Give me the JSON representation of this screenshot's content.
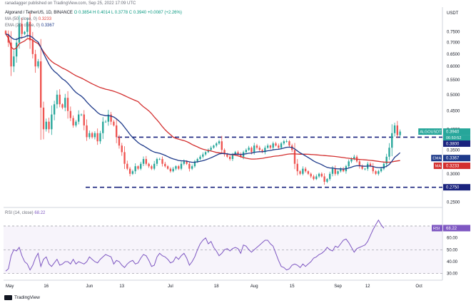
{
  "header": {
    "publisher_line": "ranadagger published on TradingView.com, Sep 25, 2022 17:09 UTC",
    "symbol_line": "Algorand / TetherUS, 1D, BINANCE",
    "ohlc": "O 0.3854  H 0.4014  L 0.3778  C 0.3940  +0.0087 (+2.26%)",
    "ma_label": "MA (50, close, 0)",
    "ma_value": "0.3233",
    "ema_label": "EMA (20, close, 0)",
    "ema_value": "0.3367",
    "rsi_label": "RSI (14, close)",
    "rsi_value": "68.22",
    "currency": "USDT"
  },
  "footer": {
    "brand": "TradingView"
  },
  "colors": {
    "candle_up": "#26a69a",
    "candle_down": "#ef5350",
    "ema": "#1e3a8a",
    "ma": "#d32f2f",
    "rsi": "#7e57c2",
    "dashed": "#1a237e",
    "price_badge": "#26a69a"
  },
  "chart_data": [
    {
      "type": "candlestick",
      "title": "Algorand / TetherUS, 1D, BINANCE",
      "x_tick_labels": [
        "May",
        "16",
        "Jun",
        "13",
        "Jul",
        "18",
        "Aug",
        "15",
        "Sep",
        "12",
        "Oct"
      ],
      "x_tick_days": [
        0,
        15,
        31,
        43,
        61,
        78,
        92,
        106,
        123,
        134,
        153
      ],
      "y_axis": {
        "scale": "log",
        "ylim": [
          0.2425,
          0.88
        ],
        "tick_labels": [
          "0.7500",
          "0.7000",
          "0.6500",
          "0.6000",
          "0.5500",
          "0.5000",
          "0.4500",
          "0.4000",
          "0.3500",
          "0.3000",
          "0.2500"
        ],
        "tick_values": [
          0.75,
          0.7,
          0.65,
          0.6,
          0.55,
          0.5,
          0.45,
          0.4,
          0.35,
          0.3,
          0.25
        ],
        "range_label_values": [
          0.275,
          0.38
        ]
      },
      "close": [
        0.74,
        0.7,
        0.6,
        0.64,
        0.7,
        0.79,
        0.74,
        0.75,
        0.8,
        0.71,
        0.65,
        0.6,
        0.62,
        0.46,
        0.4,
        0.42,
        0.4,
        0.44,
        0.47,
        0.5,
        0.47,
        0.46,
        0.49,
        0.45,
        0.43,
        0.41,
        0.42,
        0.44,
        0.44,
        0.41,
        0.38,
        0.39,
        0.38,
        0.39,
        0.37,
        0.39,
        0.42,
        0.42,
        0.44,
        0.42,
        0.41,
        0.38,
        0.36,
        0.345,
        0.32,
        0.31,
        0.3,
        0.305,
        0.315,
        0.31,
        0.32,
        0.33,
        0.32,
        0.315,
        0.31,
        0.32,
        0.33,
        0.33,
        0.32,
        0.315,
        0.31,
        0.305,
        0.31,
        0.315,
        0.31,
        0.32,
        0.325,
        0.32,
        0.31,
        0.315,
        0.325,
        0.33,
        0.335,
        0.34,
        0.345,
        0.35,
        0.355,
        0.36,
        0.365,
        0.37,
        0.35,
        0.34,
        0.335,
        0.33,
        0.34,
        0.345,
        0.34,
        0.335,
        0.345,
        0.35,
        0.355,
        0.345,
        0.36,
        0.355,
        0.35,
        0.345,
        0.355,
        0.36,
        0.355,
        0.365,
        0.36,
        0.355,
        0.365,
        0.37,
        0.37,
        0.36,
        0.35,
        0.32,
        0.305,
        0.3,
        0.31,
        0.305,
        0.3,
        0.295,
        0.29,
        0.295,
        0.3,
        0.295,
        0.285,
        0.29,
        0.3,
        0.31,
        0.3,
        0.305,
        0.31,
        0.305,
        0.315,
        0.325,
        0.33,
        0.335,
        0.325,
        0.315,
        0.31,
        0.31,
        0.32,
        0.315,
        0.305,
        0.3,
        0.305,
        0.31,
        0.32,
        0.335,
        0.355,
        0.39,
        0.41,
        0.385,
        0.394
      ],
      "series": [
        {
          "name": "EMA (20, close, 0)",
          "last": 0.3367
        },
        {
          "name": "MA (50, close, 0)",
          "last": 0.3233
        }
      ],
      "horizontal_levels": [
        0.38,
        0.275
      ],
      "last_price": 0.394,
      "countdown": "06:50:52",
      "price_labels": [
        {
          "text": "ALGOUSDT",
          "value": "0.3940"
        },
        {
          "text": "",
          "value": "0.3800"
        },
        {
          "text": "EMA",
          "value": "0.3367"
        },
        {
          "text": "MA",
          "value": "0.3233"
        },
        {
          "text": "",
          "value": "0.2750"
        }
      ]
    },
    {
      "type": "line",
      "title": "RSI (14, close)",
      "series": [
        {
          "name": "RSI (14, close)",
          "values": [
            32,
            34,
            45,
            50,
            49,
            52,
            45,
            40,
            38,
            33,
            37,
            43,
            47,
            36,
            42,
            44,
            38,
            36,
            39,
            42,
            37,
            38,
            40,
            40,
            38,
            42,
            38,
            40,
            39,
            38,
            40,
            44,
            42,
            40,
            39,
            42,
            44,
            46,
            45,
            44,
            38,
            41,
            40,
            37,
            35,
            38,
            40,
            41,
            38,
            39,
            43,
            46,
            45,
            41,
            36,
            37,
            44,
            47,
            45,
            44,
            42,
            39,
            40,
            44,
            42,
            45,
            47,
            43,
            37,
            40,
            44,
            50,
            55,
            58,
            60,
            55,
            57,
            52,
            49,
            45,
            47,
            50,
            51,
            49,
            51,
            52,
            51,
            47,
            54,
            53,
            50,
            48,
            50,
            52,
            54,
            56,
            58,
            58,
            55,
            53,
            47,
            41,
            36,
            35,
            33,
            34,
            37,
            38,
            37,
            35,
            38,
            36,
            38,
            40,
            43,
            44,
            46,
            47,
            49,
            52,
            50,
            49,
            53,
            52,
            55,
            58,
            59,
            56,
            52,
            48,
            51,
            52,
            53,
            54,
            57,
            62,
            67,
            71,
            75,
            71,
            68.22
          ]
        }
      ],
      "y_axis": {
        "ylim": [
          25,
          85
        ],
        "tick_labels": [
          "60.00",
          "50.00",
          "40.00",
          "30.00"
        ],
        "tick_values": [
          60,
          50,
          40,
          30
        ]
      },
      "overbought": 70,
      "oversold": 30
    }
  ]
}
